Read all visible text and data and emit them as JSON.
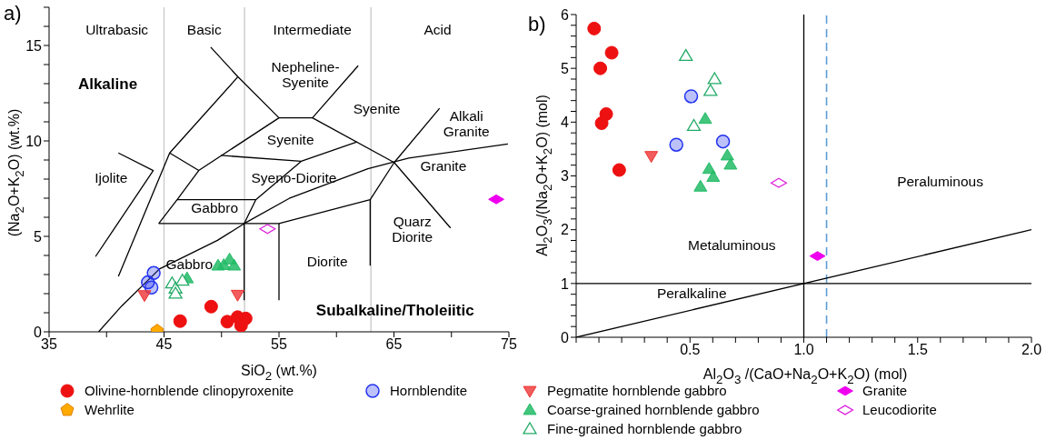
{
  "chart_data": [
    {
      "type": "scatter",
      "xlabel": "SiO$_{2}$ (wt.%)",
      "ylabel": "(Na$_{2}$O+K$_{2}$O) (wt.%)",
      "xlim": [
        35,
        75
      ],
      "ylim": [
        0,
        17
      ],
      "xticks": [
        35,
        {
          "value": 40,
          "label": null
        },
        45,
        {
          "value": 50,
          "label": null
        },
        55,
        {
          "value": 60,
          "label": null
        },
        65,
        {
          "value": 70,
          "label": null
        },
        75
      ],
      "yticks": [
        0,
        {
          "value": 1,
          "label": null
        },
        {
          "value": 2,
          "label": null
        },
        {
          "value": 3,
          "label": null
        },
        {
          "value": 4,
          "label": null
        },
        5,
        {
          "value": 6,
          "label": null
        },
        {
          "value": 7,
          "label": null
        },
        {
          "value": 8,
          "label": null
        },
        {
          "value": 9,
          "label": null
        },
        10,
        {
          "value": 11,
          "label": null
        },
        {
          "value": 12,
          "label": null
        },
        {
          "value": 13,
          "label": null
        },
        {
          "value": 14,
          "label": null
        },
        15,
        {
          "value": 16,
          "label": null
        },
        {
          "value": 17,
          "label": null
        }
      ],
      "legend": "bottom",
      "ref_lines": [
        {
          "axis": "x",
          "value": 45,
          "color": "#c8c8c8"
        },
        {
          "axis": "x",
          "value": 52,
          "color": "#c8c8c8"
        },
        {
          "axis": "x",
          "value": 63,
          "color": "#c8c8c8"
        }
      ],
      "series": [
        {
          "type": "line",
          "color": "#000000",
          "marker": "none",
          "x": [
            41.03,
            44.06,
            39.04
          ],
          "values": [
            9.37,
            8.45,
            3.94
          ]
        },
        {
          "type": "line",
          "color": "#000000",
          "marker": "none",
          "x": [
            41.03,
            45.49,
            51.43
          ],
          "values": [
            2.9,
            9.37,
            13.36
          ]
        },
        {
          "type": "line",
          "color": "#000000",
          "marker": "none",
          "x": [
            49.06,
            51.43,
            55.0,
            57.91,
            61.89
          ],
          "values": [
            14.91,
            13.36,
            11.21,
            11.21,
            13.94
          ]
        },
        {
          "type": "line",
          "color": "#000000",
          "marker": "none",
          "x": [
            45.49,
            48.02,
            55.0
          ],
          "values": [
            9.37,
            8.45,
            11.21
          ]
        },
        {
          "type": "line",
          "color": "#000000",
          "marker": "none",
          "x": [
            48.02,
            46.14,
            44.54
          ],
          "values": [
            8.45,
            6.92,
            5.67
          ]
        },
        {
          "type": "line",
          "color": "#000000",
          "marker": "none",
          "x": [
            49.95,
            56.93,
            61.78
          ],
          "values": [
            9.24,
            8.93,
            9.95
          ]
        },
        {
          "type": "line",
          "color": "#000000",
          "marker": "none",
          "x": [
            57.91,
            65.02
          ],
          "values": [
            11.21,
            8.87
          ]
        },
        {
          "type": "line",
          "color": "#000000",
          "marker": "none",
          "x": [
            56.93,
            52.98,
            51.97,
            51.97
          ],
          "values": [
            8.93,
            6.92,
            5.67,
            1.65
          ]
        },
        {
          "type": "line",
          "color": "#000000",
          "marker": "none",
          "x": [
            46.14,
            52.98
          ],
          "values": [
            6.92,
            6.92
          ]
        },
        {
          "type": "line",
          "color": "#000000",
          "marker": "none",
          "x": [
            44.54,
            55.0,
            62.93,
            65.02
          ],
          "values": [
            5.67,
            5.67,
            6.92,
            8.87
          ]
        },
        {
          "type": "line",
          "color": "#000000",
          "marker": "none",
          "x": [
            55.0,
            55.0
          ],
          "values": [
            5.67,
            1.65
          ]
        },
        {
          "type": "line",
          "color": "#000000",
          "marker": "none",
          "x": [
            62.93,
            62.93
          ],
          "values": [
            6.92,
            3.47
          ]
        },
        {
          "type": "line",
          "color": "#000000",
          "marker": "none",
          "x": [
            68.97,
            65.02,
            69.92
          ],
          "values": [
            11.71,
            8.87,
            5.44
          ]
        },
        {
          "type": "line",
          "color": "#000000",
          "marker": "none",
          "x": [
            39.31,
            41.33,
            44.6,
            49.65,
            51.97,
            55.89,
            62.73,
            66.29,
            74.91
          ],
          "values": [
            0,
            1.36,
            3.29,
            4.79,
            5.67,
            6.99,
            8.54,
            9.1,
            9.84
          ]
        },
        {
          "name": "Olivine-hornblende clinopyroxenite",
          "color": "#ee1111",
          "marker": "circle",
          "x": [
            46.4,
            49.1,
            50.5,
            51.4,
            52.1,
            51.7
          ],
          "values": [
            0.56,
            1.32,
            0.53,
            0.77,
            0.7,
            0.33
          ]
        },
        {
          "name": "Hornblendite",
          "color": "#2233ee",
          "marker": "circle-light",
          "x": [
            44.1,
            43.6,
            43.9
          ],
          "values": [
            3.08,
            2.59,
            2.32
          ]
        },
        {
          "name": "Wehrlite",
          "color": "#ffaa00",
          "x": [
            44.4
          ],
          "values": [
            0.05
          ]
        },
        {
          "name": "Pegmatite hornblende gabbro",
          "color": "#ee3333",
          "marker": "triangle-down",
          "x": [
            43.3,
            51.4
          ],
          "values": [
            1.92,
            1.94
          ]
        },
        {
          "name": "Coarse-grained hornblende gabbro",
          "color": "#22bb66",
          "marker": "triangle",
          "x": [
            49.7,
            50.2,
            50.7,
            51.1,
            47.0
          ],
          "values": [
            3.47,
            3.5,
            3.79,
            3.47,
            2.8
          ]
        },
        {
          "name": "Fine-grained hornblende gabbro",
          "color": "#22aa66",
          "marker": "triangle-open",
          "x": [
            45.7,
            46.0,
            46.0,
            46.6
          ],
          "values": [
            2.54,
            2.27,
            2.0,
            2.68
          ]
        },
        {
          "name": "Granite",
          "color": "#ee00ee",
          "marker": "diamond",
          "x": [
            73.9
          ],
          "values": [
            6.94
          ]
        },
        {
          "name": "Leucodiorite",
          "color": "#dd22dd",
          "marker": "diamond-open",
          "x": [
            54.0
          ],
          "values": [
            5.39
          ]
        }
      ],
      "annotations": [
        "Ultrabasic",
        "Basic",
        "Intermediate",
        "Acid",
        "Alkaline",
        "Nepheline-\nSyenite",
        "Syenite",
        "Alkali\nGranite",
        "Syenite",
        "Ijolite",
        "Syeno-Diorite",
        "Granite",
        "Gabbro",
        "Quarz\nDiorite",
        "Gabbro",
        "Diorite",
        "Subalkaline/Tholeiitic",
        "a)"
      ]
    },
    {
      "type": "scatter",
      "xlabel": "Al$_{2}$O$_{3}$ /(CaO+Na$_{2}$O+K$_{2}$O) (mol)",
      "ylabel": "Al$_{2}$O$_{3}$/(Na$_{2}$O+K$_{2}$O) (mol)",
      "xlim": [
        0,
        2
      ],
      "ylim": [
        0,
        6
      ],
      "xticks": [
        {
          "value": 0,
          "label": null
        },
        {
          "value": 0.1,
          "label": null
        },
        {
          "value": 0.2,
          "label": null
        },
        {
          "value": 0.3,
          "label": null
        },
        {
          "value": 0.4,
          "label": null
        },
        0.5,
        {
          "value": 0.6,
          "label": null
        },
        {
          "value": 0.7,
          "label": null
        },
        {
          "value": 0.8,
          "label": null
        },
        {
          "value": 0.9,
          "label": null
        },
        {
          "value": 1,
          "label": "1.0"
        },
        {
          "value": 1.1,
          "label": null
        },
        {
          "value": 1.2,
          "label": null
        },
        {
          "value": 1.3,
          "label": null
        },
        {
          "value": 1.4,
          "label": null
        },
        1.5,
        {
          "value": 1.6,
          "label": null
        },
        {
          "value": 1.7,
          "label": null
        },
        {
          "value": 1.8,
          "label": null
        },
        {
          "value": 1.9,
          "label": null
        },
        {
          "value": 2,
          "label": "2.0"
        }
      ],
      "yticks": [
        0,
        {
          "value": 0.2,
          "label": null
        },
        {
          "value": 0.4,
          "label": null
        },
        {
          "value": 0.6,
          "label": null
        },
        {
          "value": 0.8,
          "label": null
        },
        1,
        {
          "value": 1.2,
          "label": null
        },
        {
          "value": 1.4,
          "label": null
        },
        {
          "value": 1.6,
          "label": null
        },
        {
          "value": 1.8,
          "label": null
        },
        2,
        {
          "value": 2.2,
          "label": null
        },
        {
          "value": 2.4,
          "label": null
        },
        {
          "value": 2.6,
          "label": null
        },
        {
          "value": 2.8,
          "label": null
        },
        3,
        {
          "value": 3.2,
          "label": null
        },
        {
          "value": 3.4,
          "label": null
        },
        {
          "value": 3.6,
          "label": null
        },
        {
          "value": 3.8,
          "label": null
        },
        4,
        {
          "value": 4.2,
          "label": null
        },
        {
          "value": 4.4,
          "label": null
        },
        {
          "value": 4.6,
          "label": null
        },
        {
          "value": 4.8,
          "label": null
        },
        5,
        {
          "value": 5.2,
          "label": null
        },
        {
          "value": 5.4,
          "label": null
        },
        {
          "value": 5.6,
          "label": null
        },
        {
          "value": 5.8,
          "label": null
        },
        6
      ],
      "ref_lines": [
        {
          "axis": "x",
          "value": 1,
          "color": "#000000"
        },
        {
          "axis": "y",
          "value": 1,
          "color": "#000000"
        },
        {
          "axis": "x",
          "value": 1.1,
          "color": "#5b9bd5",
          "line_style": "dashed"
        }
      ],
      "series": [
        {
          "type": "line",
          "color": "#000000",
          "marker": "none",
          "x": [
            0,
            2
          ],
          "values": [
            0,
            2
          ]
        },
        {
          "color": "#ee1111",
          "marker": "circle",
          "x": [
            0.079,
            0.156,
            0.106,
            0.132,
            0.112,
            0.189
          ],
          "values": [
            5.74,
            5.29,
            5.0,
            4.15,
            3.98,
            3.11
          ]
        },
        {
          "color": "#2233ee",
          "marker": "circle-light",
          "x": [
            0.505,
            0.44,
            0.645
          ],
          "values": [
            4.48,
            3.58,
            3.64
          ]
        },
        {
          "color": "#ee3333",
          "marker": "triangle-down",
          "x": [
            0.33
          ],
          "values": [
            3.37
          ]
        },
        {
          "color": "#22bb66",
          "marker": "triangle",
          "x": [
            0.567,
            0.664,
            0.678,
            0.584,
            0.602,
            0.546
          ],
          "values": [
            4.06,
            3.38,
            3.21,
            3.13,
            2.98,
            2.8
          ]
        },
        {
          "color": "#22aa66",
          "marker": "triangle-open",
          "x": [
            0.482,
            0.608,
            0.59,
            0.517
          ],
          "values": [
            5.23,
            4.8,
            4.58,
            3.93
          ]
        },
        {
          "color": "#ee00ee",
          "marker": "diamond",
          "x": [
            1.06
          ],
          "values": [
            1.51
          ]
        },
        {
          "color": "#dd22dd",
          "marker": "diamond-open",
          "x": [
            0.89
          ],
          "values": [
            2.87
          ]
        }
      ],
      "annotations": [
        "Metaluminous",
        "Peraluminous",
        "Peralkaline",
        "b)"
      ]
    }
  ]
}
